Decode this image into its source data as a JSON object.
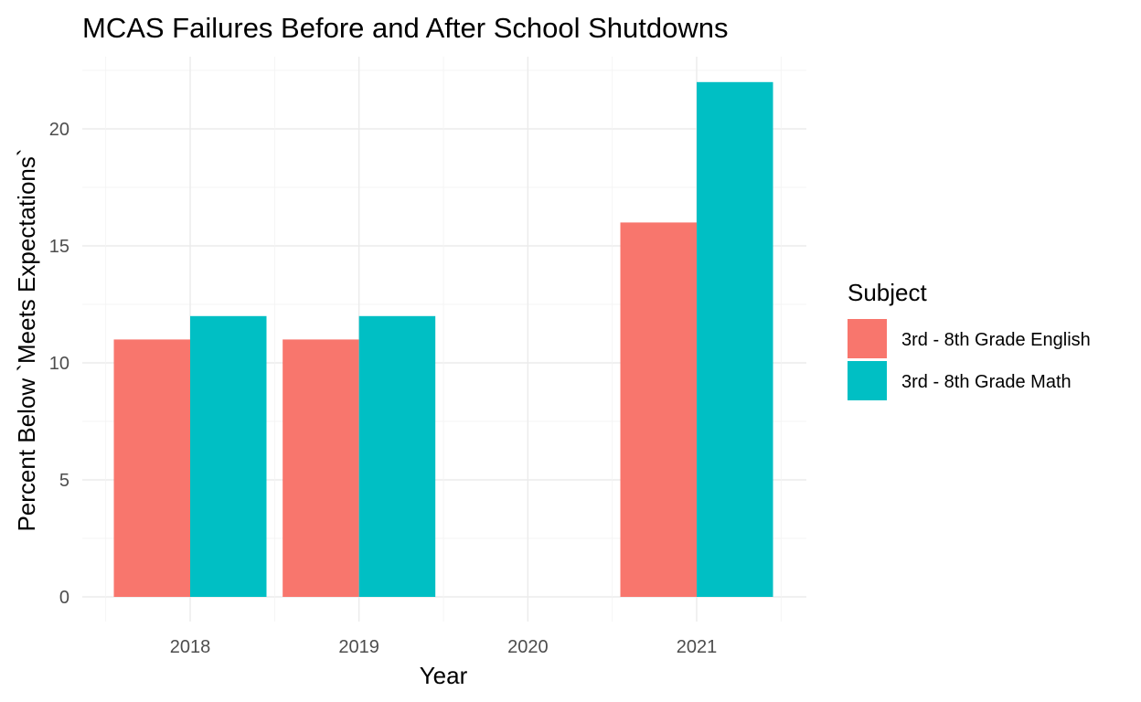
{
  "chart_data": {
    "type": "bar",
    "title": "MCAS Failures Before and After School Shutdowns",
    "xlabel": "Year",
    "ylabel": "Percent Below `Meets Expectations`",
    "categories": [
      "2018",
      "2019",
      "2020",
      "2021"
    ],
    "series": [
      {
        "name": "3rd - 8th Grade English",
        "color": "#F8766D",
        "values": [
          11,
          11,
          null,
          16
        ]
      },
      {
        "name": "3rd - 8th Grade Math",
        "color": "#00BFC4",
        "values": [
          12,
          12,
          null,
          22
        ]
      }
    ],
    "ylim": [
      0,
      22
    ],
    "yticks": [
      0,
      5,
      10,
      15,
      20
    ],
    "grid": true,
    "legend": {
      "title": "Subject",
      "position": "right"
    },
    "barmode": "dodge"
  }
}
